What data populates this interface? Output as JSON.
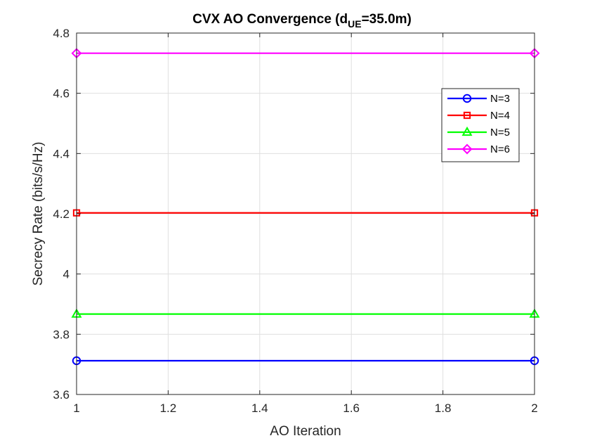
{
  "chart_data": {
    "type": "line",
    "title": {
      "main": "CVX AO Convergence (d",
      "subscript": "UE",
      "suffix": "=35.0m)"
    },
    "xlabel": "AO Iteration",
    "ylabel": "Secrecy Rate (bits/s/Hz)",
    "xlim": [
      1,
      2
    ],
    "ylim": [
      3.6,
      4.8
    ],
    "x_ticks": [
      1,
      1.2,
      1.4,
      1.6,
      1.8,
      2
    ],
    "x_tick_labels": [
      "1",
      "1.2",
      "1.4",
      "1.6",
      "1.8",
      "2"
    ],
    "y_ticks": [
      3.6,
      3.8,
      4.0,
      4.2,
      4.4,
      4.6,
      4.8
    ],
    "y_tick_labels": [
      "3.6",
      "3.8",
      "4",
      "4.2",
      "4.4",
      "4.6",
      "4.8"
    ],
    "grid": true,
    "legend_position": "top-right",
    "x": [
      1,
      2
    ],
    "series": [
      {
        "name": "N=3",
        "values": [
          3.712,
          3.712
        ],
        "color": "#0000ff",
        "marker": "circle"
      },
      {
        "name": "N=4",
        "values": [
          4.203,
          4.203
        ],
        "color": "#ff0000",
        "marker": "square"
      },
      {
        "name": "N=5",
        "values": [
          3.867,
          3.867
        ],
        "color": "#00ff00",
        "marker": "triangle"
      },
      {
        "name": "N=6",
        "values": [
          4.733,
          4.733
        ],
        "color": "#ff00ff",
        "marker": "diamond"
      }
    ]
  }
}
